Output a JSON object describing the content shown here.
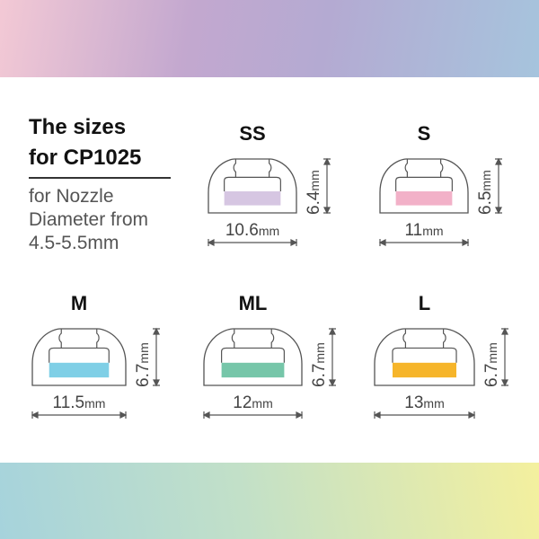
{
  "heading": {
    "line1": "The sizes",
    "line2": "for CP1025"
  },
  "subtitle": {
    "line1": "for Nozzle",
    "line2": "Diameter from",
    "line3": "4.5-5.5mm"
  },
  "unit": "mm",
  "tips": [
    {
      "size": "SS",
      "width": "10.6",
      "height": "6.4",
      "color": "#d6c6e2"
    },
    {
      "size": "S",
      "width": "11",
      "height": "6.5",
      "color": "#f2b1c8"
    },
    {
      "size": "M",
      "width": "11.5",
      "height": "6.7",
      "color": "#7fcfe6"
    },
    {
      "size": "ML",
      "width": "12",
      "height": "6.7",
      "color": "#76c6a9"
    },
    {
      "size": "L",
      "width": "13",
      "height": "6.7",
      "color": "#f6b52a"
    }
  ]
}
